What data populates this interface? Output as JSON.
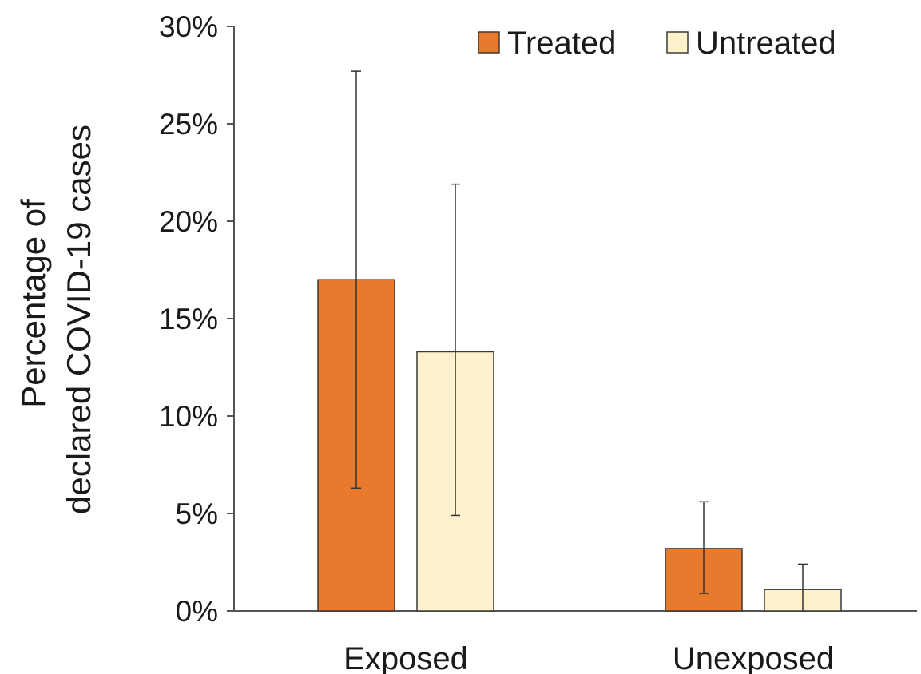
{
  "chart_data": {
    "type": "bar",
    "title": "",
    "xlabel": "",
    "ylabel_lines": [
      "Percentage of",
      "declared COVID-19 cases"
    ],
    "categories": [
      "Exposed",
      "Unexposed"
    ],
    "y_ticks": [
      "0%",
      "5%",
      "10%",
      "15%",
      "20%",
      "25%",
      "30%"
    ],
    "ylim": [
      0,
      30
    ],
    "legend_position": "top-right",
    "series": [
      {
        "name": "Treated",
        "color": "#e87a2d",
        "values": [
          17.0,
          3.2
        ],
        "error_low": [
          6.3,
          0.9
        ],
        "error_high": [
          27.7,
          5.6
        ]
      },
      {
        "name": "Untreated",
        "color": "#fff1cc",
        "values": [
          13.3,
          1.1
        ],
        "error_low": [
          4.9,
          0.0
        ],
        "error_high": [
          21.9,
          2.4
        ]
      }
    ]
  }
}
